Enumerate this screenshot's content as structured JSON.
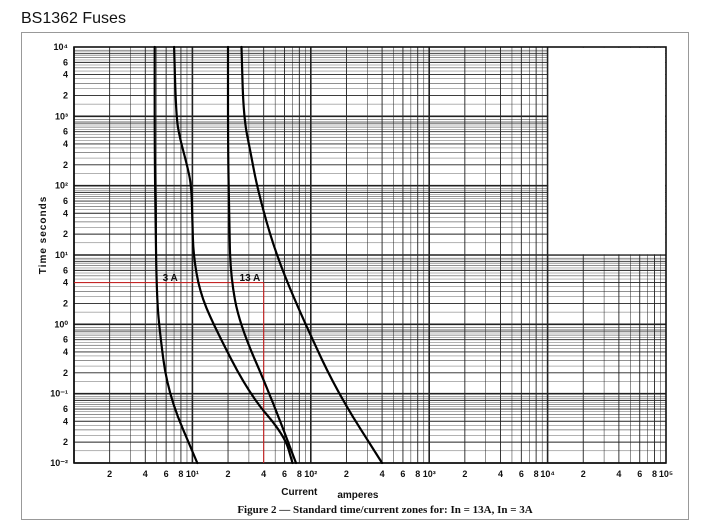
{
  "window": {
    "title": "BS1362 Fuses"
  },
  "chart_data": {
    "type": "line",
    "title": "",
    "caption": "Figure 2 — Standard time/current zones for: In = 13A, In = 3A",
    "xlabel": "Current amperes",
    "ylabel": "Time seconds",
    "xscale": "log",
    "yscale": "log",
    "xlim": [
      1,
      100000
    ],
    "ylim": [
      0.01,
      10000
    ],
    "grid": true,
    "x_tick_labels": [
      "2",
      "4",
      "6",
      "8",
      "10¹",
      "2",
      "4",
      "6",
      "8",
      "10²",
      "2",
      "4",
      "6",
      "8",
      "10³",
      "2",
      "4",
      "6",
      "8",
      "10⁴",
      "2",
      "4",
      "6",
      "8",
      "10⁵"
    ],
    "y_tick_labels": [
      "10⁴",
      "6",
      "4",
      "2",
      "10³",
      "6",
      "4",
      "2",
      "10²",
      "6",
      "4",
      "2",
      "10¹",
      "6",
      "4",
      "2",
      "10⁰",
      "6",
      "4",
      "2",
      "10⁻¹",
      "6",
      "4",
      "2",
      "10⁻²"
    ],
    "annotation_labels": {
      "a3": "3 A",
      "a13": "13 A"
    },
    "series": [
      {
        "name": "3 A",
        "kind": "min",
        "points": [
          [
            4.8,
            10000
          ],
          [
            4.8,
            300
          ],
          [
            4.9,
            20
          ],
          [
            5.0,
            3
          ],
          [
            5.2,
            1
          ],
          [
            6.2,
            0.1
          ],
          [
            11,
            0.01
          ]
        ]
      },
      {
        "name": "3 A",
        "kind": "max",
        "points": [
          [
            7.0,
            10000
          ],
          [
            7.3,
            1000
          ],
          [
            7.8,
            500
          ],
          [
            9.0,
            200
          ],
          [
            9.8,
            100
          ],
          [
            10,
            30
          ],
          [
            10.2,
            10
          ],
          [
            11.5,
            3
          ],
          [
            15,
            1
          ],
          [
            30,
            0.1
          ],
          [
            60,
            0.025
          ],
          [
            70,
            0.01
          ]
        ]
      },
      {
        "name": "13 A",
        "kind": "min",
        "points": [
          [
            20,
            10000
          ],
          [
            20,
            300
          ],
          [
            20.5,
            30
          ],
          [
            21,
            5
          ],
          [
            25,
            1
          ],
          [
            45,
            0.1
          ],
          [
            75,
            0.01
          ]
        ]
      },
      {
        "name": "13 A",
        "kind": "max",
        "points": [
          [
            26,
            10000
          ],
          [
            27,
            1000
          ],
          [
            31,
            300
          ],
          [
            35,
            100
          ],
          [
            45,
            20
          ],
          [
            60,
            5
          ],
          [
            90,
            1
          ],
          [
            170,
            0.1
          ],
          [
            400,
            0.01
          ]
        ]
      }
    ],
    "reference_lines": {
      "current": 40,
      "time": 4
    },
    "colors": {
      "curve": "#000000",
      "grid": "#222222",
      "reference": "#d42020"
    }
  }
}
